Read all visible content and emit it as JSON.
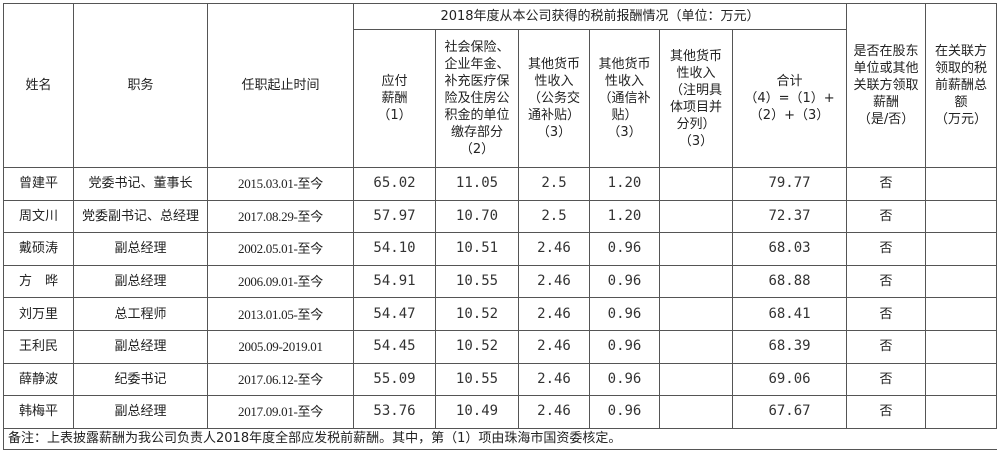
{
  "table": {
    "headers": {
      "name": "姓名",
      "position": "职务",
      "tenure": "任职起止时间",
      "group": "2018年度从本公司获得的税前报酬情况（单位：万元）",
      "payable": "应付\n薪酬\n（1）",
      "insurance": "社会保险、\n企业年金、\n补充医疗保\n险及住房公\n积金的单位\n缴存部分\n（2）",
      "other_transport": "其他货币\n性收入\n（公务交\n通补贴）\n（3）",
      "other_telecom": "其他货币\n性收入\n（通信补\n贴）\n（3）",
      "other_specify": "其他货币\n性收入\n（注明具\n体项目并\n分列）\n（3）",
      "total": "合计\n（4）=（1）+\n（2）+（3）",
      "related_paid": "是否在股东\n单位或其他\n关联方领取\n薪酬\n（是/否）",
      "related_total": "在关联方\n领取的税\n前薪酬总\n额\n（万元）"
    },
    "rows": [
      {
        "name": "曾建平",
        "position": "党委书记、董事长",
        "tenure": "2015.03.01-至今",
        "payable": "65.02",
        "insurance": "11.05",
        "transport": "2.5",
        "telecom": "1.20",
        "specify": "",
        "total": "79.77",
        "related": "否",
        "related_total": ""
      },
      {
        "name": "周文川",
        "position": "党委副书记、总经理",
        "tenure": "2017.08.29-至今",
        "payable": "57.97",
        "insurance": "10.70",
        "transport": "2.5",
        "telecom": "1.20",
        "specify": "",
        "total": "72.37",
        "related": "否",
        "related_total": ""
      },
      {
        "name": "戴硕涛",
        "position": "副总经理",
        "tenure": "2002.05.01-至今",
        "payable": "54.10",
        "insurance": "10.51",
        "transport": "2.46",
        "telecom": "0.96",
        "specify": "",
        "total": "68.03",
        "related": "否",
        "related_total": ""
      },
      {
        "name": "方　晔",
        "position": "副总经理",
        "tenure": "2006.09.01-至今",
        "payable": "54.91",
        "insurance": "10.55",
        "transport": "2.46",
        "telecom": "0.96",
        "specify": "",
        "total": "68.88",
        "related": "否",
        "related_total": ""
      },
      {
        "name": "刘万里",
        "position": "总工程师",
        "tenure": "2013.01.05-至今",
        "payable": "54.47",
        "insurance": "10.52",
        "transport": "2.46",
        "telecom": "0.96",
        "specify": "",
        "total": "68.41",
        "related": "否",
        "related_total": ""
      },
      {
        "name": "王利民",
        "position": "副总经理",
        "tenure": "2005.09-2019.01",
        "payable": "54.45",
        "insurance": "10.52",
        "transport": "2.46",
        "telecom": "0.96",
        "specify": "",
        "total": "68.39",
        "related": "否",
        "related_total": ""
      },
      {
        "name": "薛静波",
        "position": "纪委书记",
        "tenure": "2017.06.12-至今",
        "payable": "55.09",
        "insurance": "10.55",
        "transport": "2.46",
        "telecom": "0.96",
        "specify": "",
        "total": "69.06",
        "related": "否",
        "related_total": ""
      },
      {
        "name": "韩梅平",
        "position": "副总经理",
        "tenure": "2017.09.01-至今",
        "payable": "53.76",
        "insurance": "10.49",
        "transport": "2.46",
        "telecom": "0.96",
        "specify": "",
        "total": "67.67",
        "related": "否",
        "related_total": ""
      }
    ],
    "note": "备注：上表披露薪酬为我公司负责人2018年度全部应发税前薪酬。其中，第（1）项由珠海市国资委核定。"
  }
}
